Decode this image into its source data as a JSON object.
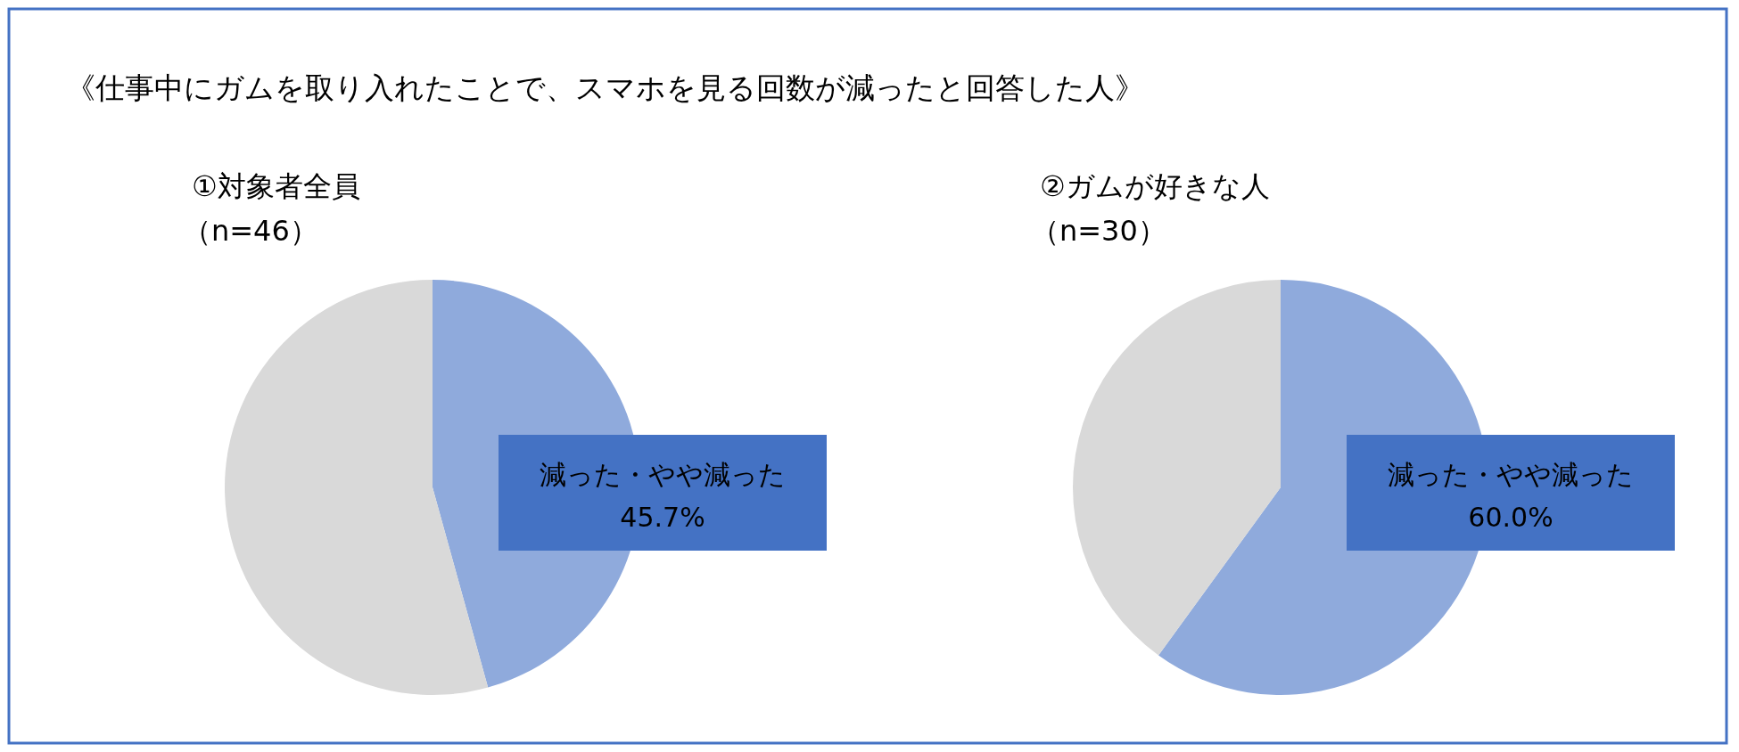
{
  "chart_data": [
    {
      "type": "pie",
      "title": "①対象者全員",
      "subtitle": "（n=46）",
      "annotations": [
        "《仕事中にガムを取り入れたことで、スマホを見る回数が減ったと回答した人》"
      ],
      "categories": [
        "減った・やや減った",
        null
      ],
      "values": [
        45.7,
        54.3
      ],
      "colors": [
        "#8faadc",
        "#d9d9d9"
      ],
      "value_labels": [
        "45.7%",
        null
      ],
      "legend": false
    },
    {
      "type": "pie",
      "title": "②ガムが好きな人",
      "subtitle": "（n=30）",
      "categories": [
        "減った・やや減った",
        null
      ],
      "values": [
        60.0,
        40.0
      ],
      "colors": [
        "#8faadc",
        "#d9d9d9"
      ],
      "value_labels": [
        "60.0%",
        null
      ],
      "legend": false
    }
  ]
}
